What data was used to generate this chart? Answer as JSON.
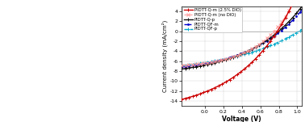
{
  "xlabel": "Voltage (V)",
  "ylabel": "Current density (mA/cm²)",
  "xlim": [
    -0.25,
    1.05
  ],
  "ylim": [
    -15,
    5
  ],
  "yticks": [
    -14,
    -12,
    -10,
    -8,
    -6,
    -4,
    -2,
    0,
    2,
    4
  ],
  "xticks": [
    0.0,
    0.2,
    0.4,
    0.6,
    0.8,
    1.0
  ],
  "series": [
    {
      "label": "PIDTT-Q-m (2.5% DIO)",
      "color": "#cc0000",
      "linestyle": "-",
      "marker": "+",
      "Voc": 0.785,
      "Jsc": -12.2,
      "nf": 22,
      "linewidth": 1.0
    },
    {
      "label": "PIDTT-Q-m (no DIO)",
      "color": "#ff9999",
      "linestyle": "--",
      "marker": "x",
      "Voc": 0.75,
      "Jsc": -6.4,
      "nf": 14,
      "linewidth": 0.8
    },
    {
      "label": "PIDTT-Q-p",
      "color": "#111111",
      "linestyle": "-",
      "marker": "+",
      "Voc": 0.8,
      "Jsc": -6.8,
      "nf": 22,
      "linewidth": 1.0
    },
    {
      "label": "PIDTT-QF-m",
      "color": "#0000cc",
      "linestyle": "-.",
      "marker": ".",
      "Voc": 0.82,
      "Jsc": -6.5,
      "nf": 22,
      "linewidth": 1.0
    },
    {
      "label": "PIDTT-QF-p",
      "color": "#00aacc",
      "linestyle": "--",
      "marker": "+",
      "Voc": 1.02,
      "Jsc": -6.3,
      "nf": 28,
      "linewidth": 1.0
    }
  ],
  "bg_color": "#ffffff",
  "grid_color": "#cccccc",
  "fig_width": 3.78,
  "fig_height": 1.51,
  "dpi": 100
}
